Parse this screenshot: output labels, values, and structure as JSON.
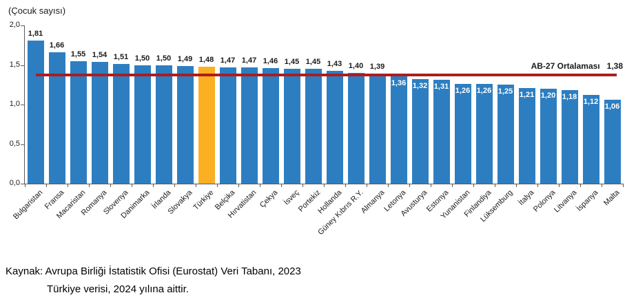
{
  "chart_data": {
    "type": "bar",
    "axis_title": "(Çocuk sayısı)",
    "categories": [
      "Bulgaristan",
      "Fransa",
      "Macaristan",
      "Romanya",
      "Slovenya",
      "Danimarka",
      "İrlanda",
      "Slovakya",
      "Türkiye",
      "Belçika",
      "Hırvatistan",
      "Çekya",
      "İsveç",
      "Portekiz",
      "Hollanda",
      "Güney Kıbrıs R.Y.",
      "Almanya",
      "Letonya",
      "Avusturya",
      "Estonya",
      "Yunanistan",
      "Finlandiya",
      "Lüksemburg",
      "İtalya",
      "Polonya",
      "Litvanya",
      "İspanya",
      "Malta"
    ],
    "values": [
      1.81,
      1.66,
      1.55,
      1.54,
      1.51,
      1.5,
      1.5,
      1.49,
      1.48,
      1.47,
      1.47,
      1.46,
      1.45,
      1.45,
      1.43,
      1.4,
      1.39,
      1.36,
      1.32,
      1.31,
      1.26,
      1.26,
      1.25,
      1.21,
      1.2,
      1.18,
      1.12,
      1.06
    ],
    "value_labels": [
      "1,81",
      "1,66",
      "1,55",
      "1,54",
      "1,51",
      "1,50",
      "1,50",
      "1,49",
      "1,48",
      "1,47",
      "1,47",
      "1,46",
      "1,45",
      "1,45",
      "1,43",
      "1,40",
      "1,39",
      "1,36",
      "1,32",
      "1,31",
      "1,26",
      "1,26",
      "1,25",
      "1,21",
      "1,20",
      "1,18",
      "1,12",
      "1,06"
    ],
    "highlight_category": "Türkiye",
    "highlight_index": 8,
    "ylim": [
      0,
      2
    ],
    "yticks": [
      "0,0",
      "0,5",
      "1,0",
      "1,5",
      "2,0"
    ],
    "grid": false,
    "legend_position": "none",
    "colors": {
      "bar": "#2D7EC1",
      "highlight": "#FBB024",
      "reference_line": "#AE1C1E"
    },
    "reference_line": {
      "value": 1.38,
      "label": "AB-27 Ortalaması",
      "value_label": "1,38"
    }
  },
  "footer": {
    "source_line1": "Kaynak: Avrupa Birliği İstatistik Ofisi (Eurostat) Veri Tabanı, 2023",
    "source_line2": "Türkiye verisi, 2024 yılına aittir."
  }
}
